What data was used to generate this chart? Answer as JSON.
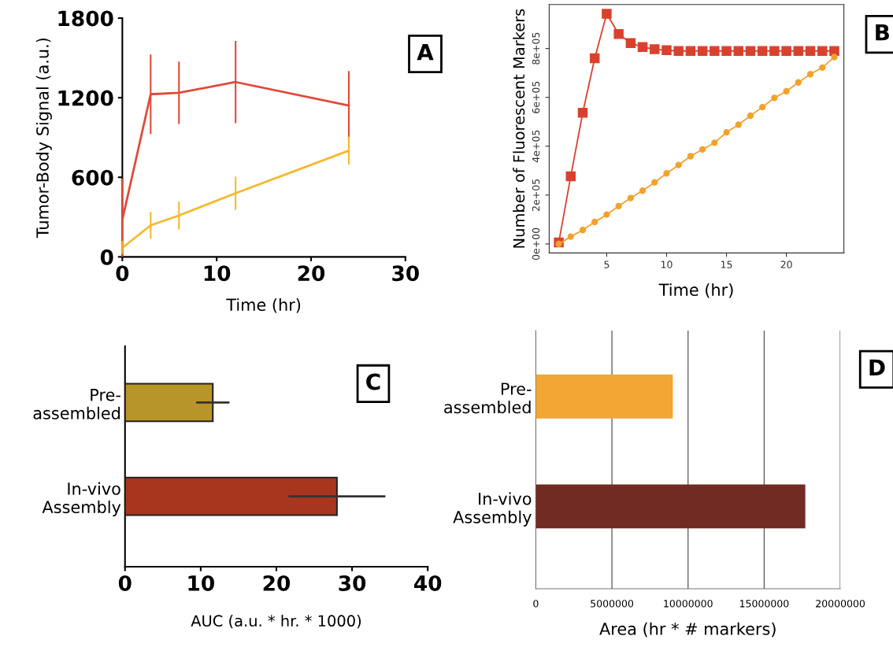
{
  "chart_data": [
    {
      "type": "line",
      "xlabel": "Time (hr)",
      "ylabel": "Tumor-Body Signal (a.u.)",
      "annotations": [
        "A"
      ],
      "xlim": [
        0,
        30
      ],
      "xticks": [
        0,
        10,
        20,
        30
      ],
      "ylim": [
        0,
        1800
      ],
      "yticks": [
        0,
        600,
        1200,
        1800
      ],
      "grid": false,
      "legend": false,
      "marker": "none",
      "x": [
        0,
        3,
        6,
        12,
        24
      ],
      "series": [
        {
          "color": "#e04a3a",
          "values": [
            280,
            1226,
            1237,
            1318,
            1141
          ],
          "errors": [
            [
              0,
              590
            ],
            300,
            235,
            310,
            260
          ]
        },
        {
          "color": "#f5b82e",
          "values": [
            68,
            238,
            312,
            480,
            801
          ],
          "errors": [
            [
              20,
              120
            ],
            100,
            105,
            125,
            105
          ]
        }
      ]
    },
    {
      "type": "line",
      "xlabel": "Time (hr)",
      "ylabel": "Number of Fluorescent Markers",
      "annotations": [
        "B"
      ],
      "xlim": [
        0.2,
        24.8
      ],
      "xticks": [
        5,
        10,
        15,
        20
      ],
      "ylim": [
        -37000,
        980000
      ],
      "yticks": [
        {
          "value": 0,
          "label": "0e+00"
        },
        {
          "value": 200000,
          "label": "2e+05"
        },
        {
          "value": 400000,
          "label": "4e+05"
        },
        {
          "value": 600000,
          "label": "6e+05"
        },
        {
          "value": 800000,
          "label": "8e+05"
        }
      ],
      "grid": false,
      "legend": false,
      "x": [
        1,
        2,
        3,
        4,
        5,
        6,
        7,
        8,
        9,
        10,
        11,
        12,
        13,
        14,
        15,
        16,
        17,
        18,
        19,
        20,
        21,
        22,
        23,
        24
      ],
      "series": [
        {
          "color": "#d9412f",
          "marker": "square",
          "values": [
            6000,
            277000,
            537000,
            760000,
            942000,
            859000,
            822000,
            806000,
            797000,
            793000,
            790000,
            790000,
            790000,
            790000,
            790000,
            790000,
            790000,
            790000,
            790000,
            790000,
            790000,
            790000,
            790000,
            790000
          ]
        },
        {
          "color": "#f2a22c",
          "marker": "circle",
          "values": [
            0,
            30000,
            57000,
            90000,
            120000,
            155000,
            188000,
            218000,
            252000,
            289000,
            323000,
            359000,
            387000,
            414000,
            457000,
            488000,
            525000,
            560000,
            598000,
            625000,
            661000,
            695000,
            722000,
            765000
          ]
        }
      ]
    },
    {
      "type": "bar",
      "orientation": "horizontal",
      "xlabel": "AUC (a.u. * hr. * 1000)",
      "annotations": [
        "C"
      ],
      "categories": [
        "Pre-\nassembled",
        "In-vivo\nAssembly"
      ],
      "values": [
        11.6,
        28.0
      ],
      "errors": [
        2.2,
        6.4
      ],
      "colors": [
        "#b8952a",
        "#a8361f"
      ],
      "xlim": [
        0,
        40
      ],
      "xticks": [
        0,
        10,
        20,
        30,
        40
      ],
      "grid": false,
      "legend": false
    },
    {
      "type": "bar",
      "orientation": "horizontal",
      "xlabel": "Area (hr * # markers)",
      "annotations": [
        "D"
      ],
      "categories": [
        "Pre-\nassembled",
        "In-vivo\nAssembly"
      ],
      "values": [
        9000000,
        17700000
      ],
      "colors": [
        "#f2a634",
        "#722b22"
      ],
      "xlim": [
        0,
        20000000
      ],
      "xticks": [
        0,
        5000000,
        10000000,
        15000000,
        20000000
      ],
      "grid": "x",
      "legend": false
    }
  ]
}
